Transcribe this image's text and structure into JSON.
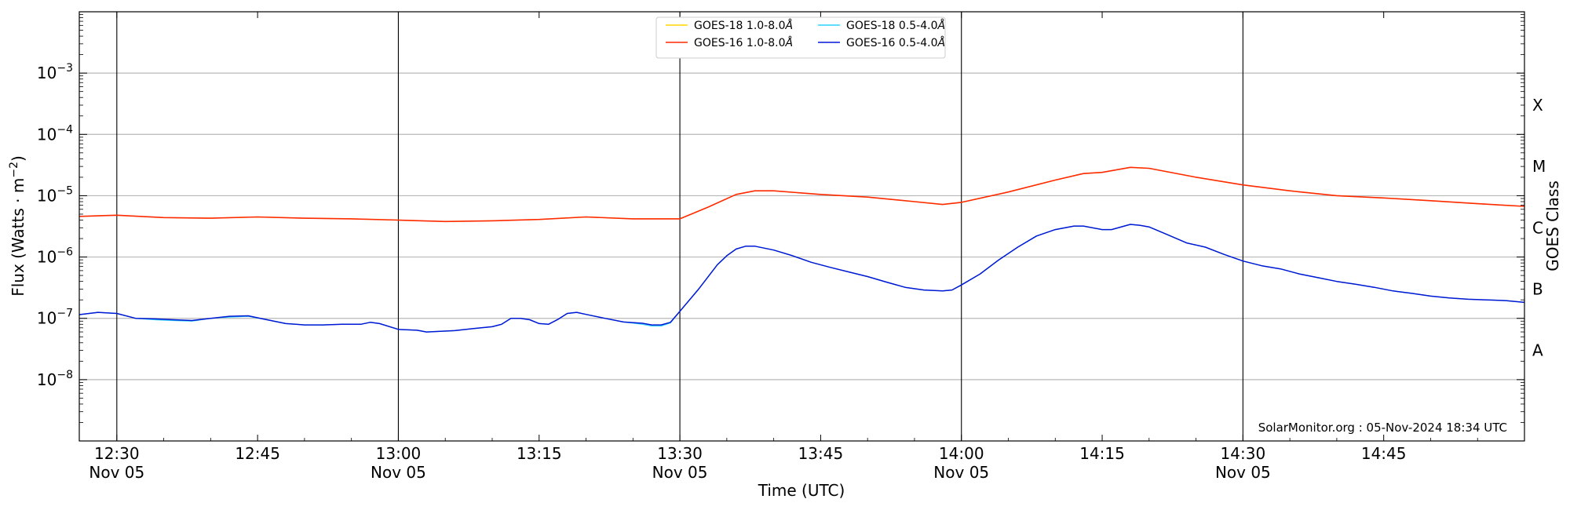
{
  "chart_data": {
    "type": "line",
    "title": "",
    "xlabel": "Time (UTC)",
    "ylabel": "Flux (Watts · m",
    "ylabel_sup": "−2",
    "ylabel_close": ")",
    "right_label": "GOES Class",
    "watermark": "SolarMonitor.org : 05-Nov-2024 18:34 UTC",
    "y_scale": "log",
    "ylim": [
      1e-09,
      0.01
    ],
    "xlim": [
      "2024-11-05T12:26",
      "2024-11-05T15:00"
    ],
    "grid": "horizontal at decades",
    "legend_position": "top-center",
    "y_ticks": [
      {
        "value": 1e-08,
        "base": "10",
        "exp": "−8"
      },
      {
        "value": 1e-07,
        "base": "10",
        "exp": "−7"
      },
      {
        "value": 1e-06,
        "base": "10",
        "exp": "−6"
      },
      {
        "value": 1e-05,
        "base": "10",
        "exp": "−5"
      },
      {
        "value": 0.0001,
        "base": "10",
        "exp": "−4"
      },
      {
        "value": 0.001,
        "base": "10",
        "exp": "−3"
      }
    ],
    "x_ticks": [
      {
        "time": "12:30",
        "label": "12:30",
        "sub": "Nov 05",
        "vline": true
      },
      {
        "time": "12:45",
        "label": "12:45",
        "sub": "",
        "vline": false
      },
      {
        "time": "13:00",
        "label": "13:00",
        "sub": "Nov 05",
        "vline": true
      },
      {
        "time": "13:15",
        "label": "13:15",
        "sub": "",
        "vline": false
      },
      {
        "time": "13:30",
        "label": "13:30",
        "sub": "Nov 05",
        "vline": true
      },
      {
        "time": "13:45",
        "label": "13:45",
        "sub": "",
        "vline": false
      },
      {
        "time": "14:00",
        "label": "14:00",
        "sub": "Nov 05",
        "vline": true
      },
      {
        "time": "14:15",
        "label": "14:15",
        "sub": "",
        "vline": false
      },
      {
        "time": "14:30",
        "label": "14:30",
        "sub": "Nov 05",
        "vline": true
      },
      {
        "time": "14:45",
        "label": "14:45",
        "sub": "",
        "vline": false
      }
    ],
    "class_labels": [
      {
        "label": "A",
        "value": 3e-08
      },
      {
        "label": "B",
        "value": 3e-07
      },
      {
        "label": "C",
        "value": 3e-06
      },
      {
        "label": "M",
        "value": 3e-05
      },
      {
        "label": "X",
        "value": 0.0003
      }
    ],
    "series": [
      {
        "name": "GOES-18 1.0-8.0",
        "unit": "Å",
        "color": "#ffd700",
        "width": 1.2,
        "x": [
          "12:26",
          "12:30",
          "12:35",
          "12:40",
          "12:45",
          "12:50",
          "12:55",
          "13:00",
          "13:05",
          "13:10",
          "13:15",
          "13:20",
          "13:25",
          "13:30",
          "13:33",
          "13:36",
          "13:38",
          "13:40",
          "13:45",
          "13:50",
          "13:55",
          "13:58",
          "14:00",
          "14:05",
          "14:10",
          "14:13",
          "14:15",
          "14:18",
          "14:20",
          "14:25",
          "14:30",
          "14:35",
          "14:40",
          "14:45",
          "14:50",
          "14:55",
          "15:00"
        ],
        "y": [
          4.6e-06,
          4.8e-06,
          4.4e-06,
          4.3e-06,
          4.5e-06,
          4.3e-06,
          4.2e-06,
          4e-06,
          3.8e-06,
          3.9e-06,
          4.1e-06,
          4.5e-06,
          4.2e-06,
          4.2e-06,
          6.5e-06,
          1.05e-05,
          1.2e-05,
          1.2e-05,
          1.05e-05,
          9.5e-06,
          8e-06,
          7.2e-06,
          7.8e-06,
          1.15e-05,
          1.8e-05,
          2.3e-05,
          2.4e-05,
          2.9e-05,
          2.8e-05,
          2e-05,
          1.5e-05,
          1.2e-05,
          1e-05,
          9.2e-06,
          8.3e-06,
          7.4e-06,
          6.7e-06
        ]
      },
      {
        "name": "GOES-16 1.0-8.0",
        "unit": "Å",
        "color": "#ff2a00",
        "width": 1.6,
        "x": [
          "12:26",
          "12:30",
          "12:35",
          "12:40",
          "12:45",
          "12:50",
          "12:55",
          "13:00",
          "13:05",
          "13:10",
          "13:15",
          "13:20",
          "13:25",
          "13:30",
          "13:33",
          "13:36",
          "13:38",
          "13:40",
          "13:45",
          "13:50",
          "13:55",
          "13:58",
          "14:00",
          "14:05",
          "14:10",
          "14:13",
          "14:15",
          "14:18",
          "14:20",
          "14:25",
          "14:30",
          "14:35",
          "14:40",
          "14:45",
          "14:50",
          "14:55",
          "15:00"
        ],
        "y": [
          4.6e-06,
          4.8e-06,
          4.4e-06,
          4.3e-06,
          4.5e-06,
          4.3e-06,
          4.2e-06,
          4e-06,
          3.8e-06,
          3.9e-06,
          4.1e-06,
          4.5e-06,
          4.2e-06,
          4.2e-06,
          6.5e-06,
          1.05e-05,
          1.2e-05,
          1.2e-05,
          1.05e-05,
          9.5e-06,
          8e-06,
          7.2e-06,
          7.8e-06,
          1.15e-05,
          1.8e-05,
          2.3e-05,
          2.4e-05,
          2.9e-05,
          2.8e-05,
          2e-05,
          1.5e-05,
          1.2e-05,
          1e-05,
          9.2e-06,
          8.3e-06,
          7.4e-06,
          6.7e-06
        ]
      },
      {
        "name": "GOES-18 0.5-4.0",
        "unit": "Å",
        "color": "#2ad4ff",
        "width": 1.2,
        "x": [
          "12:26",
          "12:28",
          "12:30",
          "12:32",
          "12:34",
          "12:36",
          "12:38",
          "12:40",
          "12:42",
          "12:44",
          "12:46",
          "12:48",
          "12:50",
          "12:52",
          "12:54",
          "12:56",
          "12:57",
          "12:58",
          "13:00",
          "13:02",
          "13:03",
          "13:06",
          "13:08",
          "13:10",
          "13:11",
          "13:12",
          "13:13",
          "13:14",
          "13:15",
          "13:16",
          "13:17",
          "13:18",
          "13:19",
          "13:20",
          "13:22",
          "13:24",
          "13:26",
          "13:27",
          "13:28",
          "13:29",
          "13:30",
          "13:32",
          "13:34",
          "13:35",
          "13:36",
          "13:37",
          "13:38",
          "13:40",
          "13:42",
          "13:44",
          "13:46",
          "13:48",
          "13:50",
          "13:52",
          "13:54",
          "13:56",
          "13:58",
          "13:59",
          "14:00",
          "14:02",
          "14:04",
          "14:06",
          "14:08",
          "14:10",
          "14:12",
          "14:13",
          "14:15",
          "14:16",
          "14:18",
          "14:19",
          "14:20",
          "14:22",
          "14:24",
          "14:26",
          "14:28",
          "14:30",
          "14:32",
          "14:34",
          "14:36",
          "14:38",
          "14:40",
          "14:42",
          "14:44",
          "14:46",
          "14:48",
          "14:50",
          "14:52",
          "14:54",
          "14:56",
          "14:58",
          "15:00"
        ],
        "y": [
          1.15e-07,
          1.25e-07,
          1.2e-07,
          1e-07,
          9.5e-08,
          9.2e-08,
          9e-08,
          1e-07,
          1.05e-07,
          1.08e-07,
          9.5e-08,
          8.2e-08,
          7.8e-08,
          7.8e-08,
          8e-08,
          8e-08,
          8.6e-08,
          8.2e-08,
          6.6e-08,
          6.4e-08,
          6e-08,
          6.3e-08,
          6.8e-08,
          7.3e-08,
          8e-08,
          1e-07,
          1e-07,
          9.5e-08,
          8.2e-08,
          8e-08,
          9.6e-08,
          1.2e-07,
          1.25e-07,
          1.16e-07,
          1e-07,
          8.7e-08,
          8e-08,
          7.5e-08,
          7.5e-08,
          8.4e-08,
          1.3e-07,
          3e-07,
          7.5e-07,
          1.05e-06,
          1.35e-06,
          1.5e-06,
          1.5e-06,
          1.3e-06,
          1.05e-06,
          8.2e-07,
          6.8e-07,
          5.7e-07,
          4.8e-07,
          3.9e-07,
          3.2e-07,
          2.9e-07,
          2.8e-07,
          2.9e-07,
          3.5e-07,
          5.3e-07,
          9e-07,
          1.45e-06,
          2.2e-06,
          2.8e-06,
          3.2e-06,
          3.2e-06,
          2.8e-06,
          2.8e-06,
          3.4e-06,
          3.3e-06,
          3.1e-06,
          2.3e-06,
          1.7e-06,
          1.45e-06,
          1.1e-06,
          8.6e-07,
          7.2e-07,
          6.4e-07,
          5.3e-07,
          4.6e-07,
          4e-07,
          3.6e-07,
          3.2e-07,
          2.8e-07,
          2.55e-07,
          2.3e-07,
          2.15e-07,
          2.05e-07,
          2e-07,
          1.95e-07,
          1.82e-07
        ]
      },
      {
        "name": "GOES-16 0.5-4.0",
        "unit": "Å",
        "color": "#0018d4",
        "width": 1.5,
        "x": [
          "12:26",
          "12:28",
          "12:30",
          "12:32",
          "12:34",
          "12:36",
          "12:38",
          "12:40",
          "12:42",
          "12:44",
          "12:46",
          "12:48",
          "12:50",
          "12:52",
          "12:54",
          "12:56",
          "12:57",
          "12:58",
          "13:00",
          "13:02",
          "13:03",
          "13:06",
          "13:08",
          "13:10",
          "13:11",
          "13:12",
          "13:13",
          "13:14",
          "13:15",
          "13:16",
          "13:17",
          "13:18",
          "13:19",
          "13:20",
          "13:22",
          "13:24",
          "13:26",
          "13:27",
          "13:28",
          "13:29",
          "13:30",
          "13:32",
          "13:34",
          "13:35",
          "13:36",
          "13:37",
          "13:38",
          "13:40",
          "13:42",
          "13:44",
          "13:46",
          "13:48",
          "13:50",
          "13:52",
          "13:54",
          "13:56",
          "13:58",
          "13:59",
          "14:00",
          "14:02",
          "14:04",
          "14:06",
          "14:08",
          "14:10",
          "14:12",
          "14:13",
          "14:15",
          "14:16",
          "14:18",
          "14:19",
          "14:20",
          "14:22",
          "14:24",
          "14:26",
          "14:28",
          "14:30",
          "14:32",
          "14:34",
          "14:36",
          "14:38",
          "14:40",
          "14:42",
          "14:44",
          "14:46",
          "14:48",
          "14:50",
          "14:52",
          "14:54",
          "14:56",
          "14:58",
          "15:00"
        ],
        "y": [
          1.15e-07,
          1.25e-07,
          1.2e-07,
          1e-07,
          9.8e-08,
          9.5e-08,
          9.2e-08,
          1e-07,
          1.08e-07,
          1.1e-07,
          9.5e-08,
          8.2e-08,
          7.8e-08,
          7.8e-08,
          8e-08,
          8e-08,
          8.6e-08,
          8.2e-08,
          6.6e-08,
          6.4e-08,
          6e-08,
          6.3e-08,
          6.8e-08,
          7.3e-08,
          8e-08,
          1e-07,
          1e-07,
          9.5e-08,
          8.2e-08,
          8e-08,
          9.6e-08,
          1.2e-07,
          1.25e-07,
          1.16e-07,
          1e-07,
          8.7e-08,
          8.3e-08,
          7.8e-08,
          7.8e-08,
          8.6e-08,
          1.3e-07,
          3e-07,
          7.5e-07,
          1.05e-06,
          1.35e-06,
          1.5e-06,
          1.5e-06,
          1.3e-06,
          1.05e-06,
          8.2e-07,
          6.8e-07,
          5.7e-07,
          4.8e-07,
          3.9e-07,
          3.2e-07,
          2.9e-07,
          2.8e-07,
          2.9e-07,
          3.5e-07,
          5.3e-07,
          9e-07,
          1.45e-06,
          2.2e-06,
          2.8e-06,
          3.2e-06,
          3.2e-06,
          2.8e-06,
          2.8e-06,
          3.4e-06,
          3.3e-06,
          3.1e-06,
          2.3e-06,
          1.7e-06,
          1.45e-06,
          1.1e-06,
          8.6e-07,
          7.2e-07,
          6.4e-07,
          5.3e-07,
          4.6e-07,
          4e-07,
          3.6e-07,
          3.2e-07,
          2.8e-07,
          2.55e-07,
          2.3e-07,
          2.15e-07,
          2.05e-07,
          2e-07,
          1.95e-07,
          1.82e-07
        ]
      }
    ]
  }
}
